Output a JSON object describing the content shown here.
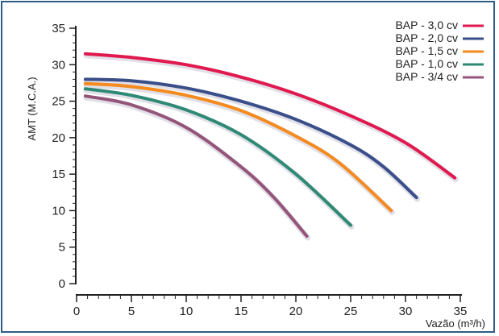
{
  "chart_data": {
    "type": "line",
    "title": "",
    "xlabel": "Vazão (m³/h)",
    "ylabel": "AMT (M.C.A.)",
    "xlim": [
      0,
      35
    ],
    "ylim": [
      0,
      35
    ],
    "x_ticks": [
      "0",
      "5",
      "10",
      "15",
      "20",
      "25",
      "30",
      "35"
    ],
    "y_ticks": [
      "0",
      "5",
      "10",
      "15",
      "20",
      "25",
      "30",
      "35"
    ],
    "grid": false,
    "legend_position": "top-right",
    "series": [
      {
        "name": "BAP - 3,0 cv",
        "color": "#e0194f",
        "points": [
          [
            0.8,
            31.5
          ],
          [
            5,
            31.0
          ],
          [
            10,
            30.0
          ],
          [
            15,
            28.3
          ],
          [
            20,
            26.0
          ],
          [
            25,
            23.0
          ],
          [
            30,
            19.3
          ],
          [
            34.5,
            14.5
          ]
        ]
      },
      {
        "name": "BAP - 2,0 cv",
        "color": "#3a4f8a",
        "points": [
          [
            0.8,
            28.0
          ],
          [
            5,
            27.8
          ],
          [
            10,
            26.8
          ],
          [
            15,
            25.0
          ],
          [
            20,
            22.5
          ],
          [
            25,
            19.0
          ],
          [
            28,
            16.0
          ],
          [
            31,
            11.8
          ]
        ]
      },
      {
        "name": "BAP - 1,5 cv",
        "color": "#f58a1f",
        "points": [
          [
            0.8,
            27.4
          ],
          [
            5,
            27.0
          ],
          [
            10,
            25.8
          ],
          [
            15,
            23.7
          ],
          [
            20,
            20.2
          ],
          [
            24,
            16.5
          ],
          [
            28.7,
            10.0
          ]
        ]
      },
      {
        "name": "BAP - 1,0 cv",
        "color": "#2e8a74",
        "points": [
          [
            0.8,
            26.7
          ],
          [
            5,
            25.8
          ],
          [
            10,
            23.8
          ],
          [
            15,
            20.4
          ],
          [
            20,
            15.0
          ],
          [
            25,
            8.0
          ]
        ]
      },
      {
        "name": "BAP - 3/4 cv",
        "color": "#955479",
        "points": [
          [
            0.8,
            25.7
          ],
          [
            5,
            24.5
          ],
          [
            10,
            21.4
          ],
          [
            15,
            16.0
          ],
          [
            18,
            11.8
          ],
          [
            21,
            6.5
          ]
        ]
      }
    ]
  },
  "colors": {
    "frame": "#2d5d86",
    "axis": "#222222"
  }
}
